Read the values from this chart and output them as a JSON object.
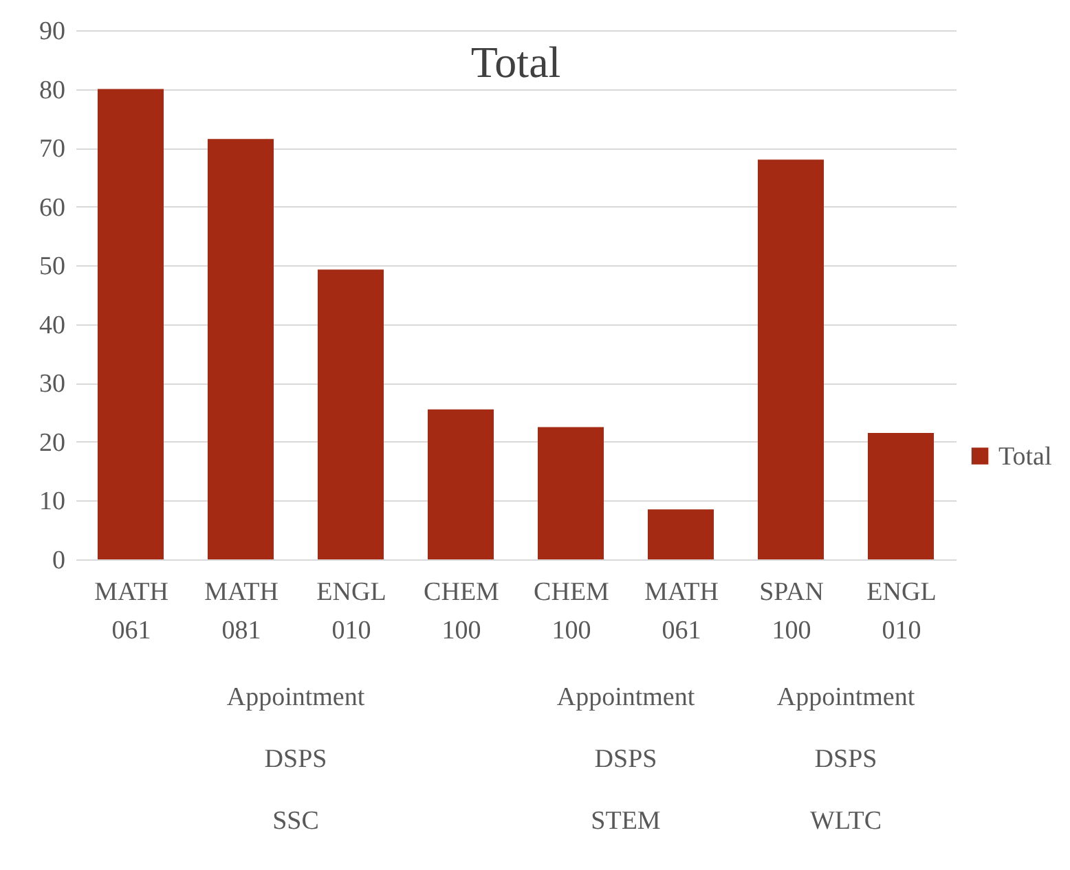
{
  "chart_data": {
    "type": "bar",
    "title": "Total",
    "categories": [
      "MATH 061",
      "MATH 081",
      "ENGL 010",
      "CHEM 100",
      "CHEM 100",
      "MATH 061",
      "SPAN 100",
      "ENGL 010"
    ],
    "series": [
      {
        "name": "Total",
        "color": "#a52a14",
        "values": [
          80,
          71.5,
          49.3,
          25.5,
          22.5,
          8.5,
          68,
          21.5
        ]
      }
    ],
    "ylim": [
      0,
      90
    ],
    "yticks": [
      0,
      10,
      20,
      30,
      40,
      50,
      60,
      70,
      80,
      90
    ],
    "grid": "y",
    "legend": "right",
    "annotations": [
      "Appointment",
      "Appointment",
      "Appointment",
      "DSPS",
      "DSPS",
      "DSPS",
      "SSC",
      "STEM",
      "WLTC"
    ]
  }
}
